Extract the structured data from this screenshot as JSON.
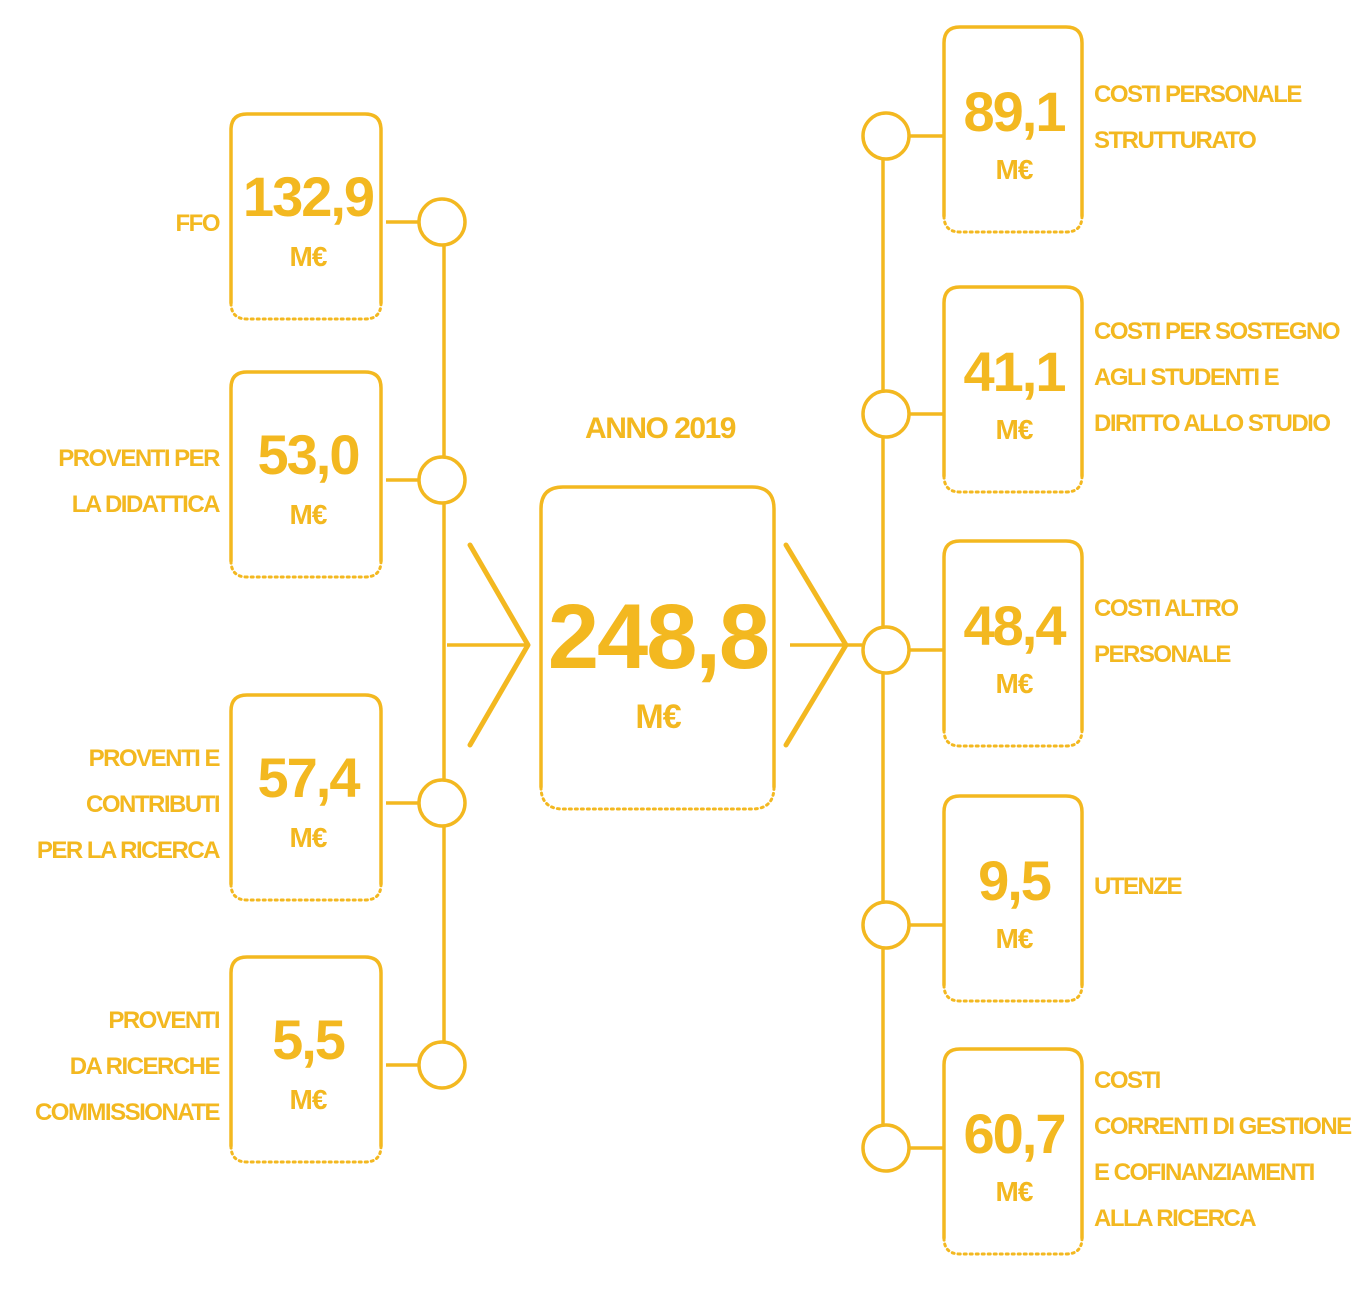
{
  "colors": {
    "accent": "#f3b820"
  },
  "center": {
    "title": "ANNO 2019",
    "value": "248,8",
    "unit": "M€"
  },
  "income": [
    {
      "value": "132,9",
      "unit": "M€",
      "label": [
        "FFO"
      ]
    },
    {
      "value": "53,0",
      "unit": "M€",
      "label": [
        "PROVENTI PER",
        "LA DIDATTICA"
      ]
    },
    {
      "value": "57,4",
      "unit": "M€",
      "label": [
        "PROVENTI E",
        "CONTRIBUTI",
        "PER LA RICERCA"
      ]
    },
    {
      "value": "5,5",
      "unit": "M€",
      "label": [
        "PROVENTI",
        "DA RICERCHE",
        "COMMISSIONATE"
      ]
    }
  ],
  "costs": [
    {
      "value": "89,1",
      "unit": "M€",
      "label": [
        "COSTI PERSONALE",
        "STRUTTURATO"
      ]
    },
    {
      "value": "41,1",
      "unit": "M€",
      "label": [
        "COSTI PER SOSTEGNO",
        "AGLI STUDENTI E",
        "DIRITTO ALLO STUDIO"
      ]
    },
    {
      "value": "48,4",
      "unit": "M€",
      "label": [
        "COSTI ALTRO",
        "PERSONALE"
      ]
    },
    {
      "value": "9,5",
      "unit": "M€",
      "label": [
        "UTENZE"
      ]
    },
    {
      "value": "60,7",
      "unit": "M€",
      "label": [
        "COSTI",
        "CORRENTI DI GESTIONE",
        "E COFINANZIAMENTI",
        "ALLA RICERCA"
      ]
    }
  ]
}
